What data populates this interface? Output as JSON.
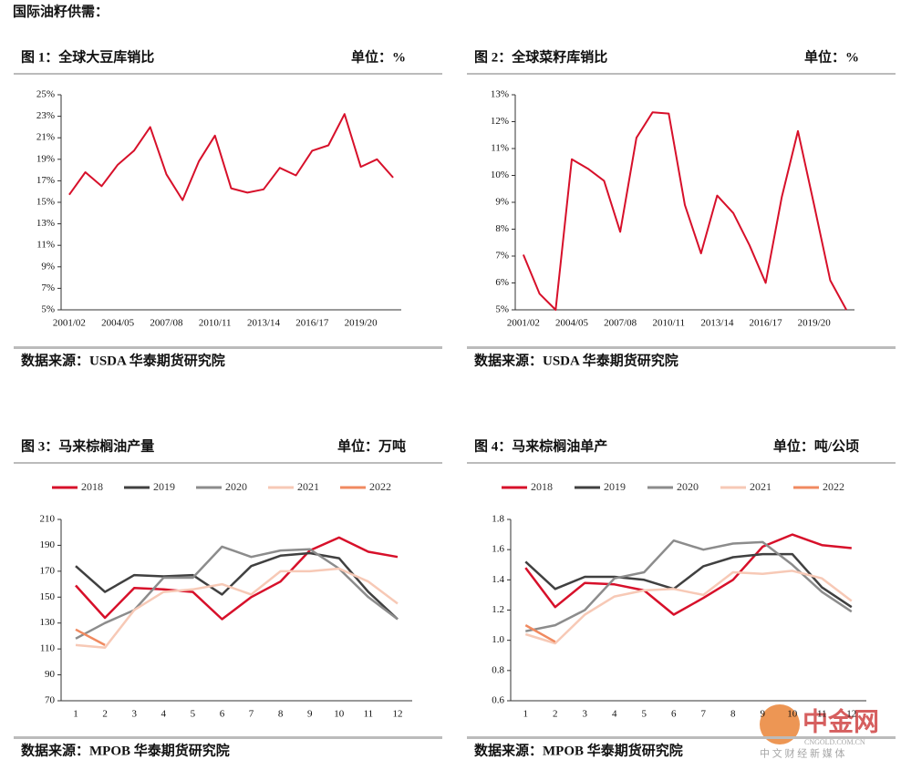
{
  "heading": "国际油籽供需：",
  "watermark": {
    "name": "中金网",
    "url": "CNGOLD.COM.CN",
    "tagline": "中 文 财 经 新 媒 体"
  },
  "chart_data": [
    {
      "type": "line",
      "title": "图 1：全球大豆库销比",
      "unit": "单位：%",
      "source": "数据来源：USDA 华泰期货研究院",
      "categories": [
        "2001/02",
        null,
        null,
        "2004/05",
        null,
        null,
        "2007/08",
        null,
        null,
        "2010/11",
        null,
        null,
        "2013/14",
        null,
        null,
        "2016/17",
        null,
        null,
        "2019/20",
        null,
        null
      ],
      "values": [
        15.7,
        17.8,
        16.5,
        18.5,
        19.8,
        22.0,
        17.6,
        15.2,
        18.8,
        21.2,
        16.3,
        15.9,
        16.2,
        18.2,
        17.5,
        19.8,
        20.3,
        23.2,
        18.3,
        19.0,
        17.3
      ],
      "color": "#d7102a",
      "ylim": [
        5,
        25
      ],
      "yticks": [
        {
          "value": 5,
          "label": "5%"
        },
        {
          "value": 7,
          "label": "7%"
        },
        {
          "value": 9,
          "label": "9%"
        },
        {
          "value": 11,
          "label": "11%"
        },
        {
          "value": 13,
          "label": "13%"
        },
        {
          "value": 15,
          "label": "15%"
        },
        {
          "value": 17,
          "label": "17%"
        },
        {
          "value": 19,
          "label": "19%"
        },
        {
          "value": 21,
          "label": "21%"
        },
        {
          "value": 23,
          "label": "23%"
        },
        {
          "value": 25,
          "label": "25%"
        }
      ]
    },
    {
      "type": "line",
      "title": "图 2：全球菜籽库销比",
      "unit": "单位：%",
      "source": "数据来源：USDA 华泰期货研究院",
      "categories": [
        "2001/02",
        null,
        null,
        "2004/05",
        null,
        null,
        "2007/08",
        null,
        null,
        "2010/11",
        null,
        null,
        "2013/14",
        null,
        null,
        "2016/17",
        null,
        null,
        "2019/20",
        null,
        null
      ],
      "values": [
        7.05,
        5.6,
        5.0,
        10.6,
        10.25,
        9.8,
        7.9,
        11.4,
        12.35,
        12.3,
        8.9,
        7.1,
        9.25,
        8.6,
        7.4,
        6.0,
        9.2,
        11.65,
        8.9,
        6.1,
        5.0
      ],
      "color": "#d7102a",
      "ylim": [
        5,
        13
      ],
      "yticks": [
        {
          "value": 5,
          "label": "5%"
        },
        {
          "value": 6,
          "label": "6%"
        },
        {
          "value": 7,
          "label": "7%"
        },
        {
          "value": 8,
          "label": "8%"
        },
        {
          "value": 9,
          "label": "9%"
        },
        {
          "value": 10,
          "label": "10%"
        },
        {
          "value": 11,
          "label": "11%"
        },
        {
          "value": 12,
          "label": "12%"
        },
        {
          "value": 13,
          "label": "13%"
        }
      ]
    },
    {
      "type": "line",
      "title": "图 3：马来棕榈油产量",
      "unit": "单位：万吨",
      "source": "数据来源：MPOB 华泰期货研究院",
      "categories": [
        "1",
        "2",
        "3",
        "4",
        "5",
        "6",
        "7",
        "8",
        "9",
        "10",
        "11",
        "12"
      ],
      "series": [
        {
          "name": "2018",
          "color": "#d7102a",
          "values": [
            159,
            134,
            157,
            156,
            154,
            133,
            150,
            162,
            186,
            196,
            185,
            181
          ]
        },
        {
          "name": "2019",
          "color": "#404040",
          "values": [
            174,
            154,
            167,
            166,
            167,
            152,
            174,
            182,
            184,
            180,
            154,
            133
          ]
        },
        {
          "name": "2020",
          "color": "#8c8c8c",
          "values": [
            118,
            130,
            140,
            165,
            165,
            189,
            181,
            186,
            187,
            172,
            150,
            133
          ]
        },
        {
          "name": "2021",
          "color": "#f7c9b6",
          "values": [
            113,
            111,
            140,
            154,
            156,
            160,
            152,
            170,
            170,
            172,
            162,
            145
          ]
        },
        {
          "name": "2022",
          "color": "#f08a60",
          "values": [
            125,
            113,
            null,
            null,
            null,
            null,
            null,
            null,
            null,
            null,
            null,
            null
          ]
        }
      ],
      "ylim": [
        70,
        210
      ],
      "yticks": [
        70,
        90,
        110,
        130,
        150,
        170,
        190,
        210
      ]
    },
    {
      "type": "line",
      "title": "图 4：马来棕榈油单产",
      "unit": "单位：吨/公顷",
      "source": "数据来源：MPOB 华泰期货研究院",
      "categories": [
        "1",
        "2",
        "3",
        "4",
        "5",
        "6",
        "7",
        "8",
        "9",
        "10",
        "11",
        "12"
      ],
      "series": [
        {
          "name": "2018",
          "color": "#d7102a",
          "values": [
            1.48,
            1.22,
            1.38,
            1.37,
            1.33,
            1.17,
            1.28,
            1.4,
            1.62,
            1.7,
            1.63,
            1.61
          ]
        },
        {
          "name": "2019",
          "color": "#404040",
          "values": [
            1.52,
            1.34,
            1.42,
            1.42,
            1.4,
            1.34,
            1.49,
            1.55,
            1.57,
            1.57,
            1.35,
            1.22
          ]
        },
        {
          "name": "2020",
          "color": "#8c8c8c",
          "values": [
            1.06,
            1.1,
            1.2,
            1.41,
            1.45,
            1.66,
            1.6,
            1.64,
            1.65,
            1.5,
            1.32,
            1.19
          ]
        },
        {
          "name": "2021",
          "color": "#f7c9b6",
          "values": [
            1.04,
            0.98,
            1.17,
            1.29,
            1.33,
            1.34,
            1.3,
            1.45,
            1.44,
            1.46,
            1.41,
            1.26
          ]
        },
        {
          "name": "2022",
          "color": "#f08a60",
          "values": [
            1.1,
            0.99,
            null,
            null,
            null,
            null,
            null,
            null,
            null,
            null,
            null,
            null
          ]
        }
      ],
      "ylim": [
        0.6,
        1.8
      ],
      "yticks": [
        0.6,
        0.8,
        {
          "value": 1.0,
          "label": "1.0"
        },
        1.2,
        1.4,
        1.6,
        1.8
      ]
    }
  ]
}
